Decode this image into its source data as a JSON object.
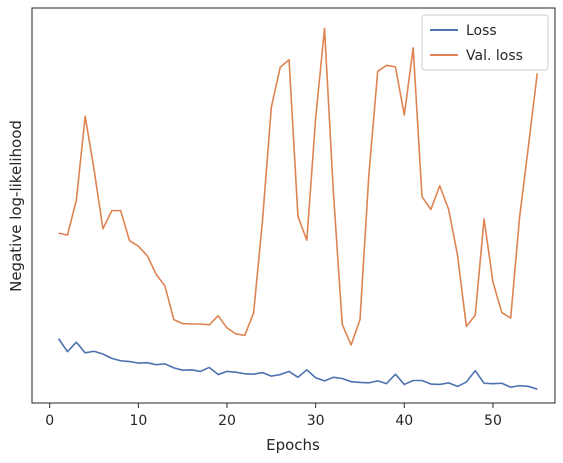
{
  "chart_data": {
    "type": "line",
    "xlabel": "Epochs",
    "ylabel": "Negative log-likelihood",
    "xlim": [
      -2,
      57
    ],
    "ylim": [
      0,
      100
    ],
    "xticks": [
      0,
      10,
      20,
      30,
      40,
      50
    ],
    "grid": false,
    "legend": "top-right",
    "x": [
      1,
      2,
      3,
      4,
      5,
      6,
      7,
      8,
      9,
      10,
      11,
      12,
      13,
      14,
      15,
      16,
      17,
      18,
      19,
      20,
      21,
      22,
      23,
      24,
      25,
      26,
      27,
      28,
      29,
      30,
      31,
      32,
      33,
      34,
      35,
      36,
      37,
      38,
      39,
      40,
      41,
      42,
      43,
      44,
      45,
      46,
      47,
      48,
      49,
      50,
      51,
      52,
      53,
      54,
      55
    ],
    "series": [
      {
        "name": "Loss",
        "color": "#4c72b0",
        "values": [
          16.3,
          13.0,
          15.4,
          12.7,
          13.1,
          12.4,
          11.3,
          10.7,
          10.5,
          10.1,
          10.2,
          9.7,
          9.9,
          8.9,
          8.3,
          8.4,
          8.0,
          9.0,
          7.2,
          8.0,
          7.8,
          7.4,
          7.3,
          7.7,
          6.8,
          7.2,
          8.0,
          6.5,
          8.4,
          6.4,
          5.6,
          6.5,
          6.2,
          5.4,
          5.2,
          5.1,
          5.6,
          4.9,
          7.3,
          4.7,
          5.7,
          5.7,
          4.8,
          4.7,
          5.1,
          4.2,
          5.3,
          8.2,
          5.0,
          4.9,
          5.0,
          4.0,
          4.4,
          4.2,
          3.5
        ]
      },
      {
        "name": "Val. loss",
        "color": "#dd8452",
        "values": [
          43.0,
          42.5,
          51.3,
          72.6,
          59.1,
          44.1,
          48.7,
          48.7,
          41.1,
          39.7,
          37.3,
          32.6,
          29.6,
          21.1,
          20.1,
          20.0,
          20.0,
          19.8,
          22.1,
          19.0,
          17.5,
          17.1,
          22.8,
          46.1,
          74.9,
          85.0,
          86.9,
          47.3,
          41.2,
          72.1,
          94.8,
          53.3,
          19.9,
          14.7,
          21.1,
          57.7,
          84.0,
          85.5,
          85.1,
          72.9,
          89.9,
          52.2,
          49.0,
          55.0,
          49.0,
          37.5,
          19.4,
          22.2,
          46.6,
          30.6,
          22.9,
          21.5,
          46.9,
          65.0,
          83.5
        ]
      }
    ]
  }
}
